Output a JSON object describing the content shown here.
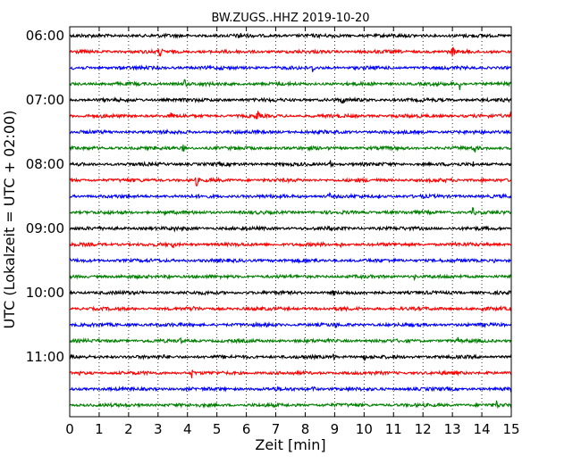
{
  "chart_data": {
    "type": "line",
    "title": "BW.ZUGS..HHZ 2019-10-20",
    "xlabel": "Zeit  [min]",
    "ylabel": "UTC (Lokalzeit = UTC + 02:00)",
    "xlim": [
      0,
      15
    ],
    "x_ticks": [
      "0",
      "1",
      "2",
      "3",
      "4",
      "5",
      "6",
      "7",
      "8",
      "9",
      "10",
      "11",
      "12",
      "13",
      "14",
      "15"
    ],
    "y_tick_labels": [
      "06:00",
      "07:00",
      "08:00",
      "09:00",
      "10:00",
      "11:00"
    ],
    "y_tick_rows": [
      0,
      4,
      8,
      12,
      16,
      20
    ],
    "grid": "vertical dotted",
    "trace_interval_min": 15,
    "traces": [
      {
        "start": "06:00",
        "color": "#000000",
        "events": [
          [
            5.75,
            8
          ],
          [
            8.9,
            4
          ]
        ]
      },
      {
        "start": "06:15",
        "color": "#ff0000",
        "events": [
          [
            3.05,
            9
          ],
          [
            13.0,
            8
          ]
        ]
      },
      {
        "start": "06:30",
        "color": "#0000ff",
        "events": [
          [
            8.25,
            7
          ]
        ]
      },
      {
        "start": "06:45",
        "color": "#008000",
        "events": [
          [
            3.9,
            7
          ],
          [
            13.25,
            8
          ]
        ]
      },
      {
        "start": "07:00",
        "color": "#000000",
        "events": [
          [
            0.35,
            4
          ],
          [
            9.25,
            7
          ]
        ]
      },
      {
        "start": "07:15",
        "color": "#ff0000",
        "events": [
          [
            3.45,
            6
          ],
          [
            6.35,
            9
          ],
          [
            15.0,
            10
          ]
        ]
      },
      {
        "start": "07:30",
        "color": "#0000ff",
        "events": [
          [
            3.3,
            4
          ]
        ]
      },
      {
        "start": "07:45",
        "color": "#008000",
        "events": [
          [
            3.85,
            6
          ],
          [
            13.75,
            8
          ]
        ]
      },
      {
        "start": "08:00",
        "color": "#000000",
        "events": [
          [
            2.1,
            3
          ],
          [
            8.85,
            6
          ],
          [
            13.7,
            4
          ]
        ]
      },
      {
        "start": "08:15",
        "color": "#ff0000",
        "events": [
          [
            4.3,
            8
          ],
          [
            14.0,
            5
          ]
        ]
      },
      {
        "start": "08:30",
        "color": "#0000ff",
        "events": [
          [
            8.8,
            6
          ],
          [
            10.5,
            3
          ]
        ]
      },
      {
        "start": "08:45",
        "color": "#008000",
        "events": [
          [
            3.2,
            6
          ],
          [
            10.8,
            3
          ],
          [
            13.7,
            7
          ]
        ]
      },
      {
        "start": "09:00",
        "color": "#000000",
        "events": [
          [
            3.55,
            4
          ],
          [
            8.8,
            5
          ]
        ]
      },
      {
        "start": "09:15",
        "color": "#ff0000",
        "events": [
          [
            3.5,
            6
          ],
          [
            9.2,
            4
          ],
          [
            13.1,
            4
          ]
        ]
      },
      {
        "start": "09:30",
        "color": "#0000ff",
        "events": [
          [
            8.3,
            7
          ],
          [
            14.4,
            4
          ]
        ]
      },
      {
        "start": "09:45",
        "color": "#008000",
        "events": [
          [
            3.35,
            5
          ],
          [
            11.7,
            4
          ]
        ]
      },
      {
        "start": "10:00",
        "color": "#000000",
        "events": [
          [
            4.6,
            3
          ],
          [
            8.95,
            6
          ],
          [
            10.25,
            4
          ]
        ]
      },
      {
        "start": "10:15",
        "color": "#ff0000",
        "events": [
          [
            4.2,
            6
          ],
          [
            9.85,
            4
          ],
          [
            14.0,
            6
          ]
        ]
      },
      {
        "start": "10:30",
        "color": "#0000ff",
        "events": [
          [
            6.7,
            5
          ],
          [
            9.0,
            6
          ]
        ]
      },
      {
        "start": "10:45",
        "color": "#008000",
        "events": [
          [
            3.75,
            5
          ],
          [
            13.2,
            6
          ]
        ]
      },
      {
        "start": "11:00",
        "color": "#000000",
        "events": [
          [
            3.2,
            3
          ],
          [
            8.95,
            5
          ],
          [
            10.0,
            5
          ]
        ]
      },
      {
        "start": "11:15",
        "color": "#ff0000",
        "events": [
          [
            0.35,
            4
          ],
          [
            4.15,
            7
          ],
          [
            14.2,
            5
          ]
        ]
      },
      {
        "start": "11:30",
        "color": "#0000ff",
        "events": [
          [
            7.0,
            4
          ],
          [
            8.25,
            6
          ]
        ]
      },
      {
        "start": "11:45",
        "color": "#008000",
        "events": [
          [
            2.4,
            3
          ],
          [
            14.5,
            6
          ]
        ]
      }
    ]
  }
}
